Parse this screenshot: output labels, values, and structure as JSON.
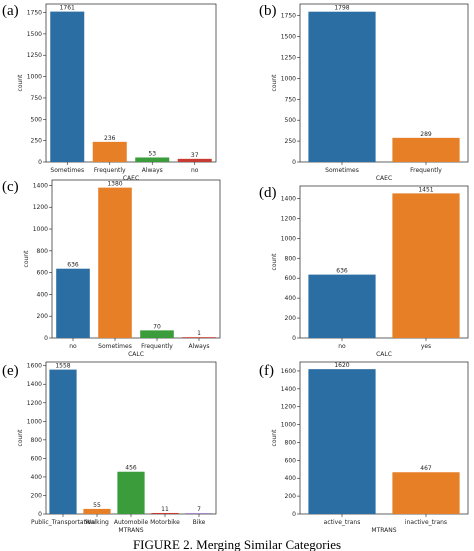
{
  "caption": "FIGURE 2. Merging Similar Categories",
  "colors": {
    "blue": "#2b6ea4",
    "orange": "#e77f27",
    "green": "#3a9c3a",
    "red": "#c83b33"
  },
  "chart_data": [
    {
      "type": "bar",
      "panel": "(a)",
      "categories": [
        "Sometimes",
        "Frequently",
        "Always",
        "no"
      ],
      "values": [
        1761,
        236,
        53,
        37
      ],
      "data_labels": [
        "1761",
        "236",
        "53",
        "37"
      ],
      "colors": [
        "#2b6ea4",
        "#e77f27",
        "#3a9c3a",
        "#c83b33"
      ],
      "xlabel": "CAEC",
      "ylabel": "count",
      "ylim": [
        0,
        1850
      ],
      "yticks": [
        0,
        250,
        500,
        750,
        1000,
        1250,
        1500,
        1750
      ]
    },
    {
      "type": "bar",
      "panel": "(b)",
      "categories": [
        "Sometimes",
        "Frequently"
      ],
      "values": [
        1798,
        289
      ],
      "data_labels": [
        "1798",
        "289"
      ],
      "colors": [
        "#2b6ea4",
        "#e77f27"
      ],
      "xlabel": "CAEC",
      "ylabel": "count",
      "ylim": [
        0,
        1890
      ],
      "yticks": [
        0,
        250,
        500,
        750,
        1000,
        1250,
        1500,
        1750
      ]
    },
    {
      "type": "bar",
      "panel": "(c)",
      "categories": [
        "no",
        "Sometimes",
        "Frequently",
        "Always"
      ],
      "values": [
        636,
        1380,
        70,
        1
      ],
      "data_labels": [
        "636",
        "1380",
        "70",
        "1"
      ],
      "colors": [
        "#2b6ea4",
        "#e77f27",
        "#3a9c3a",
        "#c83b33"
      ],
      "xlabel": "CALC",
      "ylabel": "count",
      "ylim": [
        0,
        1450
      ],
      "yticks": [
        0,
        200,
        400,
        600,
        800,
        1000,
        1200,
        1400
      ]
    },
    {
      "type": "bar",
      "panel": "(d)",
      "categories": [
        "no",
        "yes"
      ],
      "values": [
        636,
        1451
      ],
      "data_labels": [
        "636",
        "1451"
      ],
      "colors": [
        "#2b6ea4",
        "#e77f27"
      ],
      "xlabel": "CALC",
      "ylabel": "count",
      "ylim": [
        0,
        1525
      ],
      "yticks": [
        0,
        200,
        400,
        600,
        800,
        1000,
        1200,
        1400
      ]
    },
    {
      "type": "bar",
      "panel": "(e)",
      "categories": [
        "Public_Transportation",
        "Walking",
        "Automobile",
        "Motorbike",
        "Bike"
      ],
      "values": [
        1558,
        55,
        456,
        11,
        7
      ],
      "data_labels": [
        "1558",
        "55",
        "456",
        "11",
        "7"
      ],
      "colors": [
        "#2b6ea4",
        "#e77f27",
        "#3a9c3a",
        "#c83b33",
        "#8c6bb1"
      ],
      "xlabel": "MTRANS",
      "ylabel": "count",
      "ylim": [
        0,
        1640
      ],
      "yticks": [
        0,
        200,
        400,
        600,
        800,
        1000,
        1200,
        1400,
        1600
      ]
    },
    {
      "type": "bar",
      "panel": "(f)",
      "categories": [
        "active_trans",
        "inactive_trans"
      ],
      "values": [
        1620,
        467
      ],
      "data_labels": [
        "1620",
        "467"
      ],
      "colors": [
        "#2b6ea4",
        "#e77f27"
      ],
      "xlabel": "MTRANS",
      "ylabel": "count",
      "ylim": [
        0,
        1700
      ],
      "yticks": [
        0,
        200,
        400,
        600,
        800,
        1000,
        1200,
        1400,
        1600
      ]
    }
  ]
}
